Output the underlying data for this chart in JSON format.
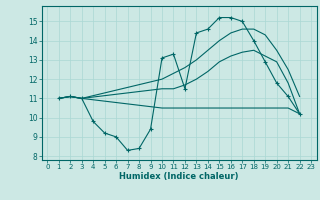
{
  "xlabel": "Humidex (Indice chaleur)",
  "bg_color": "#cce8e4",
  "grid_color": "#aad8d4",
  "line_color": "#006666",
  "xlim": [
    -0.5,
    23.5
  ],
  "ylim": [
    7.8,
    15.8
  ],
  "yticks": [
    8,
    9,
    10,
    11,
    12,
    13,
    14,
    15
  ],
  "xticks": [
    0,
    1,
    2,
    3,
    4,
    5,
    6,
    7,
    8,
    9,
    10,
    11,
    12,
    13,
    14,
    15,
    16,
    17,
    18,
    19,
    20,
    21,
    22,
    23
  ],
  "line1_x": [
    1,
    2,
    3,
    4,
    5,
    6,
    7,
    8,
    9,
    10,
    11,
    12,
    13,
    14,
    15,
    16,
    17,
    18,
    19,
    20,
    21,
    22
  ],
  "line1_y": [
    11.0,
    11.1,
    11.0,
    9.8,
    9.2,
    9.0,
    8.3,
    8.4,
    9.4,
    13.1,
    13.3,
    11.5,
    14.4,
    14.6,
    15.2,
    15.2,
    15.0,
    14.0,
    12.9,
    11.8,
    11.1,
    10.2
  ],
  "line2_x": [
    1,
    2,
    3,
    10,
    11,
    12,
    13,
    14,
    15,
    16,
    17,
    18,
    19,
    20,
    21,
    22
  ],
  "line2_y": [
    11.0,
    11.1,
    11.0,
    12.0,
    12.3,
    12.6,
    13.0,
    13.5,
    14.0,
    14.4,
    14.6,
    14.6,
    14.3,
    13.5,
    12.5,
    11.1
  ],
  "line3_x": [
    1,
    2,
    3,
    10,
    11,
    12,
    13,
    14,
    15,
    16,
    17,
    18,
    19,
    20,
    21,
    22
  ],
  "line3_y": [
    11.0,
    11.1,
    11.0,
    11.5,
    11.5,
    11.7,
    12.0,
    12.4,
    12.9,
    13.2,
    13.4,
    13.5,
    13.2,
    12.9,
    11.8,
    10.2
  ],
  "line4_x": [
    1,
    2,
    3,
    10,
    11,
    12,
    13,
    14,
    15,
    16,
    17,
    18,
    19,
    20,
    21,
    22
  ],
  "line4_y": [
    11.0,
    11.1,
    11.0,
    10.5,
    10.5,
    10.5,
    10.5,
    10.5,
    10.5,
    10.5,
    10.5,
    10.5,
    10.5,
    10.5,
    10.5,
    10.2
  ]
}
